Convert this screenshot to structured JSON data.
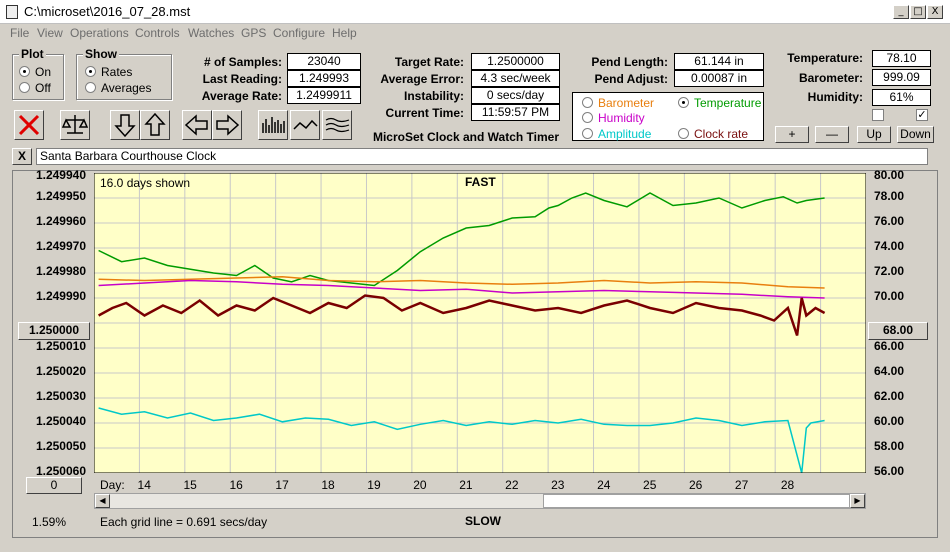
{
  "window": {
    "title": "C:\\microset\\2016_07_28.mst",
    "min": "_",
    "max": "□",
    "close": "X"
  },
  "menu": [
    "File",
    "View",
    "Operations",
    "Controls",
    "Watches",
    "GPS",
    "Configure",
    "Help"
  ],
  "plot_group": {
    "title": "Plot",
    "on": "On",
    "off": "Off",
    "selected": "On"
  },
  "show_group": {
    "title": "Show",
    "rates": "Rates",
    "averages": "Averages",
    "selected": "Rates"
  },
  "stats": {
    "samples_label": "# of Samples:",
    "samples": "23040",
    "last_reading_label": "Last Reading:",
    "last_reading": "1.249993",
    "average_rate_label": "Average Rate:",
    "average_rate": "1.2499911",
    "target_rate_label": "Target Rate:",
    "target_rate": "1.2500000",
    "average_error_label": "Average Error:",
    "average_error": "4.3 sec/week",
    "instability_label": "Instability:",
    "instability": "0 secs/day",
    "current_time_label": "Current Time:",
    "current_time": "11:59:57 PM",
    "pend_length_label": "Pend Length:",
    "pend_length": "61.144 in",
    "pend_adjust_label": "Pend Adjust:",
    "pend_adjust": "0.00087 in",
    "temperature_label": "Temperature:",
    "temperature": "78.10",
    "barometer_label": "Barometer:",
    "barometer": "999.09",
    "humidity_label": "Humidity:",
    "humidity": "61%"
  },
  "app_title": "MicroSet Clock and Watch Timer",
  "aux_options": {
    "barometer": "Barometer",
    "temperature": "Temperature",
    "humidity": "Humidity",
    "amplitude": "Amplitude",
    "clock_rate": "Clock rate",
    "selected": "Temperature",
    "colors": {
      "barometer": "#e87f0f",
      "temperature": "#009b00",
      "humidity": "#c800c8",
      "amplitude": "#00c8c8",
      "clock_rate": "#000000"
    }
  },
  "aux_buttons": {
    "plus": "+",
    "minus": "—",
    "up": "Up",
    "down": "Down"
  },
  "clock_name": "Santa Barbara Courthouse Clock",
  "clock_close": "X",
  "left_button": "1.250000",
  "right_button": "68.00",
  "zero_button": "0",
  "percent": "1.59%",
  "grid_note": "Each grid line = 0.691 secs/day",
  "days_shown": "16.0 days shown",
  "fast_label": "FAST",
  "slow_label": "SLOW",
  "day_label": "Day:",
  "chart_data": {
    "type": "line",
    "x_label": "Day",
    "x_ticks": [
      "14",
      "15",
      "16",
      "17",
      "18",
      "19",
      "20",
      "21",
      "22",
      "23",
      "24",
      "25",
      "26",
      "27",
      "28"
    ],
    "y_left_ticks": [
      "1.249940",
      "1.249950",
      "1.249960",
      "1.249970",
      "1.249980",
      "1.249990",
      "1.250000",
      "1.250010",
      "1.250020",
      "1.250030",
      "1.250040",
      "1.250050",
      "1.250060"
    ],
    "y_left_range": [
      1.24994,
      1.25006
    ],
    "y_right_ticks": [
      "80.00",
      "78.00",
      "76.00",
      "74.00",
      "72.00",
      "70.00",
      "68.00",
      "66.00",
      "64.00",
      "62.00",
      "60.00",
      "58.00",
      "56.00"
    ],
    "y_right_range": [
      56,
      80
    ],
    "grid": true,
    "background": "#ffffc8",
    "series": [
      {
        "name": "Temperature",
        "color": "#009b00",
        "axis": "right",
        "x": [
          13.0,
          13.5,
          14.0,
          14.5,
          15.0,
          15.5,
          16.0,
          16.4,
          16.8,
          17.2,
          17.6,
          18.0,
          18.5,
          19.0,
          19.5,
          20.0,
          20.5,
          21.0,
          21.5,
          22.0,
          22.5,
          22.8,
          23.0,
          23.3,
          23.6,
          24.0,
          24.5,
          25.0,
          25.5,
          26.0,
          26.5,
          27.0,
          27.5,
          27.9,
          28.2,
          28.4,
          28.8
        ],
        "y": [
          73.8,
          72.9,
          73.2,
          72.6,
          72.3,
          72.0,
          71.8,
          72.6,
          71.6,
          71.3,
          71.8,
          71.4,
          71.2,
          71.0,
          72.2,
          73.7,
          74.8,
          75.6,
          75.8,
          76.4,
          76.5,
          77.2,
          77.4,
          78.0,
          78.4,
          77.8,
          77.3,
          78.4,
          77.4,
          77.6,
          78.0,
          77.2,
          77.8,
          78.1,
          77.6,
          77.8,
          78.0
        ]
      },
      {
        "name": "Barometer",
        "color": "#e87f0f",
        "axis": "right",
        "x": [
          13.0,
          14.0,
          15.0,
          16.0,
          17.0,
          18.0,
          19.0,
          20.0,
          21.0,
          22.0,
          23.0,
          24.0,
          25.0,
          26.0,
          27.0,
          28.0,
          28.8
        ],
        "y": [
          71.5,
          71.4,
          71.5,
          71.6,
          71.7,
          71.4,
          71.3,
          71.4,
          71.2,
          71.1,
          71.2,
          71.4,
          71.2,
          71.3,
          71.2,
          70.9,
          70.8
        ]
      },
      {
        "name": "Humidity",
        "color": "#c800c8",
        "axis": "right",
        "x": [
          13.0,
          14.0,
          15.0,
          16.0,
          17.0,
          18.0,
          19.0,
          20.0,
          21.0,
          22.0,
          23.0,
          24.0,
          25.0,
          26.0,
          27.0,
          28.0,
          28.8
        ],
        "y": [
          71.0,
          71.2,
          71.4,
          71.3,
          71.1,
          71.0,
          70.8,
          70.6,
          70.7,
          70.4,
          70.5,
          70.6,
          70.5,
          70.4,
          70.3,
          70.1,
          70.0
        ]
      },
      {
        "name": "Amplitude",
        "color": "#00c8c8",
        "axis": "right",
        "x": [
          13.0,
          13.5,
          14.0,
          14.5,
          15.0,
          15.5,
          16.0,
          16.5,
          17.0,
          17.5,
          18.0,
          18.5,
          19.0,
          19.5,
          20.0,
          20.5,
          21.0,
          21.5,
          22.0,
          22.5,
          23.0,
          23.5,
          24.0,
          24.5,
          25.0,
          25.5,
          26.0,
          26.5,
          27.0,
          27.5,
          28.0,
          28.3,
          28.4,
          28.5,
          28.8
        ],
        "y": [
          61.2,
          60.7,
          60.9,
          60.4,
          60.8,
          60.2,
          60.4,
          60.7,
          60.1,
          60.4,
          60.3,
          59.8,
          60.1,
          59.5,
          59.9,
          60.2,
          59.8,
          60.1,
          59.9,
          60.2,
          60.0,
          60.3,
          59.9,
          59.8,
          59.8,
          60.0,
          60.4,
          60.2,
          59.8,
          60.1,
          60.2,
          56.0,
          59.6,
          60.0,
          60.2
        ]
      },
      {
        "name": "Clock rate",
        "color": "#7a0000",
        "axis": "left",
        "x": [
          13.0,
          13.3,
          13.6,
          14.0,
          14.4,
          14.8,
          15.2,
          15.6,
          16.0,
          16.4,
          16.8,
          17.2,
          17.6,
          18.0,
          18.4,
          18.8,
          19.2,
          19.6,
          20.0,
          20.5,
          21.0,
          21.5,
          22.0,
          22.5,
          23.0,
          23.5,
          24.0,
          24.5,
          25.0,
          25.5,
          26.0,
          26.5,
          27.0,
          27.4,
          27.7,
          28.0,
          28.2,
          28.3,
          28.4,
          28.6,
          28.8
        ],
        "y": [
          1.249997,
          1.249994,
          1.249992,
          1.249997,
          1.249993,
          1.249996,
          1.249991,
          1.249997,
          1.249993,
          1.249995,
          1.24999,
          1.249993,
          1.249996,
          1.249992,
          1.249994,
          1.249989,
          1.24999,
          1.249995,
          1.249992,
          1.249996,
          1.249994,
          1.249991,
          1.249993,
          1.249995,
          1.249994,
          1.249996,
          1.249993,
          1.249991,
          1.249994,
          1.249996,
          1.249992,
          1.249994,
          1.249995,
          1.249997,
          1.249999,
          1.249994,
          1.250005,
          1.24999,
          1.249997,
          1.249994,
          1.249996
        ]
      }
    ]
  }
}
